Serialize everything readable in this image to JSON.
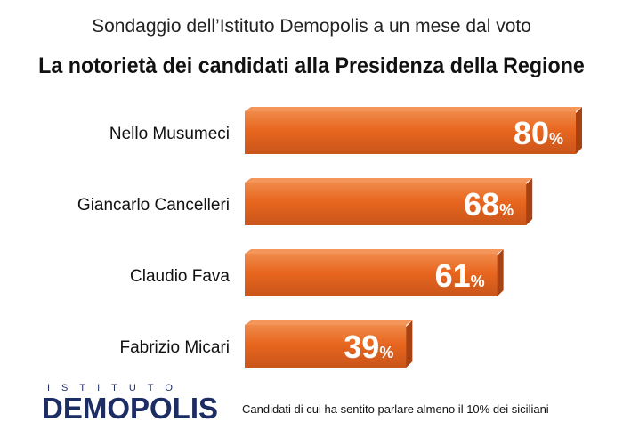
{
  "subtitle": "Sondaggio dell’Istituto Demopolis a un mese dal voto",
  "title": "La notorietà dei candidati alla Presidenza della Regione",
  "colors": {
    "bar": "#e8661f",
    "bar_dark": "#a84212",
    "bar_light": "#f4955a"
  },
  "logo": {
    "top_text": "ISTITUTO",
    "main_text": "DEMOPOLIS"
  },
  "footnote": "Candidati di cui ha sentito parlare almeno il 10% dei siciliani",
  "chart_data": {
    "type": "bar",
    "orientation": "horizontal",
    "categories": [
      "Nello Musumeci",
      "Giancarlo Cancelleri",
      "Claudio Fava",
      "Fabrizio Micari"
    ],
    "values": [
      80,
      68,
      61,
      39
    ],
    "unit": "%",
    "title": "La notorietà dei candidati alla Presidenza della Regione",
    "xlim": [
      0,
      100
    ]
  }
}
